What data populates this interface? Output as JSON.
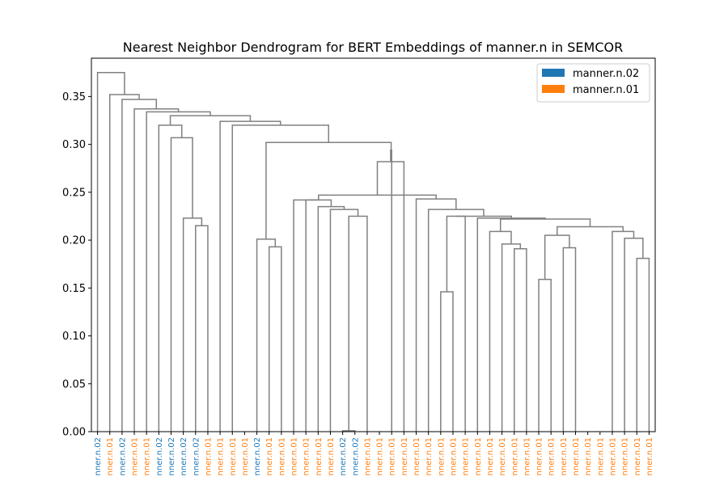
{
  "chart_data": {
    "type": "dendrogram",
    "title": "Nearest Neighbor Dendrogram for BERT Embeddings of manner.n in SEMCOR",
    "xlabel": "",
    "ylabel": "",
    "ylim": [
      0,
      0.39
    ],
    "yticks": [
      "0.00",
      "0.05",
      "0.10",
      "0.15",
      "0.20",
      "0.25",
      "0.30",
      "0.35"
    ],
    "grid": false,
    "legend": {
      "placement": "upper-right",
      "entries": [
        {
          "label": "manner.n.02",
          "color": "#1f77b4"
        },
        {
          "label": "manner.n.01",
          "color": "#ff7f0e"
        }
      ]
    },
    "link_color": "#808080",
    "leaves": [
      {
        "label": "nner.n.02",
        "sense": "manner.n.02"
      },
      {
        "label": "nner.n.01",
        "sense": "manner.n.01"
      },
      {
        "label": "nner.n.02",
        "sense": "manner.n.02"
      },
      {
        "label": "nner.n.01",
        "sense": "manner.n.01"
      },
      {
        "label": "nner.n.01",
        "sense": "manner.n.01"
      },
      {
        "label": "nner.n.02",
        "sense": "manner.n.02"
      },
      {
        "label": "nner.n.02",
        "sense": "manner.n.02"
      },
      {
        "label": "nner.n.02",
        "sense": "manner.n.02"
      },
      {
        "label": "nner.n.02",
        "sense": "manner.n.02"
      },
      {
        "label": "nner.n.01",
        "sense": "manner.n.01"
      },
      {
        "label": "nner.n.01",
        "sense": "manner.n.01"
      },
      {
        "label": "nner.n.01",
        "sense": "manner.n.01"
      },
      {
        "label": "nner.n.01",
        "sense": "manner.n.01"
      },
      {
        "label": "nner.n.02",
        "sense": "manner.n.02"
      },
      {
        "label": "nner.n.01",
        "sense": "manner.n.01"
      },
      {
        "label": "nner.n.01",
        "sense": "manner.n.01"
      },
      {
        "label": "nner.n.01",
        "sense": "manner.n.01"
      },
      {
        "label": "nner.n.01",
        "sense": "manner.n.01"
      },
      {
        "label": "nner.n.01",
        "sense": "manner.n.01"
      },
      {
        "label": "nner.n.01",
        "sense": "manner.n.01"
      },
      {
        "label": "nner.n.02",
        "sense": "manner.n.02"
      },
      {
        "label": "nner.n.02",
        "sense": "manner.n.02"
      },
      {
        "label": "nner.n.01",
        "sense": "manner.n.01"
      },
      {
        "label": "nner.n.01",
        "sense": "manner.n.01"
      },
      {
        "label": "nner.n.01",
        "sense": "manner.n.01"
      },
      {
        "label": "nner.n.01",
        "sense": "manner.n.01"
      },
      {
        "label": "nner.n.01",
        "sense": "manner.n.01"
      },
      {
        "label": "nner.n.01",
        "sense": "manner.n.01"
      },
      {
        "label": "nner.n.01",
        "sense": "manner.n.01"
      },
      {
        "label": "nner.n.01",
        "sense": "manner.n.01"
      },
      {
        "label": "nner.n.01",
        "sense": "manner.n.01"
      },
      {
        "label": "nner.n.01",
        "sense": "manner.n.01"
      },
      {
        "label": "nner.n.01",
        "sense": "manner.n.01"
      },
      {
        "label": "nner.n.01",
        "sense": "manner.n.01"
      },
      {
        "label": "nner.n.01",
        "sense": "manner.n.01"
      },
      {
        "label": "nner.n.01",
        "sense": "manner.n.01"
      },
      {
        "label": "nner.n.01",
        "sense": "manner.n.01"
      },
      {
        "label": "nner.n.01",
        "sense": "manner.n.01"
      },
      {
        "label": "nner.n.01",
        "sense": "manner.n.01"
      },
      {
        "label": "nner.n.01",
        "sense": "manner.n.01"
      },
      {
        "label": "nner.n.01",
        "sense": "manner.n.01"
      },
      {
        "label": "nner.n.01",
        "sense": "manner.n.01"
      },
      {
        "label": "nner.n.01",
        "sense": "manner.n.01"
      },
      {
        "label": "nner.n.01",
        "sense": "manner.n.01"
      },
      {
        "label": "nner.n.01",
        "sense": "manner.n.01"
      },
      {
        "label": "nner.n.01",
        "sense": "manner.n.01"
      }
    ],
    "merges": [
      {
        "left": "L20",
        "right": "L21",
        "height": 0.001
      },
      {
        "left": "L36",
        "right": "L37",
        "height": 0.159
      },
      {
        "left": "L16",
        "right": "L17",
        "height": 0.193
      },
      {
        "left": "L38",
        "right": "L39",
        "height": 0.192
      },
      {
        "left": "M1",
        "right": "M3",
        "height": 0.205
      },
      {
        "left": "L15",
        "right": "M2",
        "height": 0.201
      },
      {
        "left": "L44",
        "right": "L45",
        "height": 0.181
      },
      {
        "left": "L43",
        "right": "M6",
        "height": 0.202
      },
      {
        "left": "L42",
        "right": "M7",
        "height": 0.209
      },
      {
        "left": "M4",
        "right": "M8",
        "height": 0.214
      },
      {
        "left": "L34",
        "right": "L35",
        "height": 0.191
      },
      {
        "left": "L33",
        "right": "M10",
        "height": 0.196
      },
      {
        "left": "L32",
        "right": "M11",
        "height": 0.209
      },
      {
        "left": "M12",
        "right": "M9",
        "height": 0.222
      },
      {
        "left": "L31",
        "right": "M13",
        "height": 0.223
      },
      {
        "left": "L28",
        "right": "L29",
        "height": 0.146
      },
      {
        "left": "M15",
        "right": "L30",
        "height": 0.225
      },
      {
        "left": "M16",
        "right": "M14",
        "height": 0.225
      },
      {
        "left": "L22",
        "right": "L23",
        "height": 0.176
      },
      {
        "left": "M0",
        "right": "M18",
        "height": 0.225
      },
      {
        "left": "L18",
        "right": "L19",
        "height": 0.242
      },
      {
        "left": "L12",
        "right": "L13",
        "height": 0.252
      },
      {
        "left": "L19",
        "right": "M19",
        "height": 0.232
      },
      {
        "left": "L24",
        "right": "L25",
        "height": 0.232
      },
      {
        "left": "M23",
        "right": "M17",
        "height": 0.232
      },
      {
        "left": "L26",
        "right": "M24",
        "height": 0.243
      },
      {
        "left": "M22",
        "right": "M25",
        "height": 0.247
      },
      {
        "left": "L27",
        "right": "M26",
        "height": 0.282
      },
      {
        "left": "L9",
        "right": "L10",
        "height": 0.223
      },
      {
        "left": "L9b",
        "right": "L10b",
        "height": 0.215
      },
      {
        "left": "M21",
        "right": "M27",
        "height": 0.295
      },
      {
        "left": "M5",
        "right": "M30",
        "height": 0.302
      },
      {
        "left": "L8",
        "right": "M29",
        "height": 0.307
      },
      {
        "left": "L11",
        "right": "M31",
        "height": 0.32
      },
      {
        "left": "L7",
        "right": "M32",
        "height": 0.32
      },
      {
        "left": "L10c",
        "right": "M33",
        "height": 0.324
      },
      {
        "left": "M34",
        "right": "M35",
        "height": 0.33
      },
      {
        "left": "L5",
        "right": "M36",
        "height": 0.333
      },
      {
        "left": "L4",
        "right": "M37",
        "height": 0.337
      },
      {
        "left": "L3",
        "right": "M38",
        "height": 0.347
      },
      {
        "left": "L2",
        "right": "M39",
        "height": 0.351
      },
      {
        "left": "L1",
        "right": "M40",
        "height": 0.375
      }
    ]
  }
}
